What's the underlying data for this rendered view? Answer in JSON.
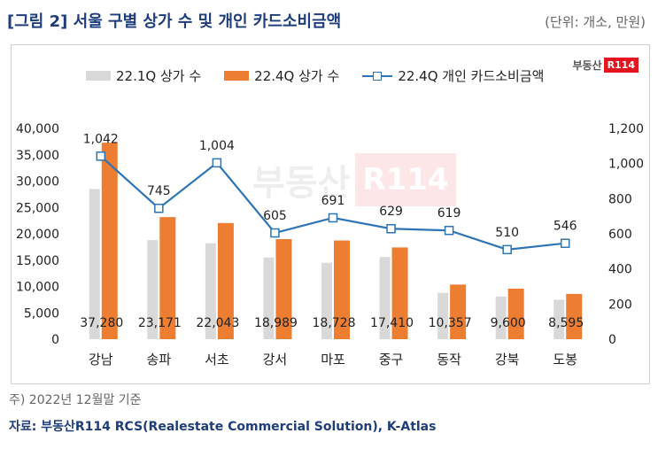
{
  "header": {
    "title": "[그림 2] 서울 구별 상가 수 및 개인 카드소비금액",
    "unit": "(단위: 개소, 만원)"
  },
  "legend": {
    "series_a": "22.1Q 상가 수",
    "series_b": "22.4Q 상가 수",
    "series_c": "22.4Q 개인 카드소비금액"
  },
  "logo": {
    "text": "부동산",
    "box": "R114"
  },
  "footer": {
    "note": "주) 2022년 12월말 기준",
    "source_label": "자료: ",
    "source_name": "부동산R114 RCS(Realestate Commercial Solution), K-Atlas"
  },
  "colors": {
    "series_a": "#d9d9d9",
    "series_b": "#ed7d31",
    "series_c": "#2e75b6",
    "title": "#1f3d7a"
  },
  "chart_data": {
    "type": "bar",
    "categories": [
      "강남",
      "송파",
      "서초",
      "강서",
      "마포",
      "중구",
      "동작",
      "강북",
      "도봉"
    ],
    "series": [
      {
        "name": "22.1Q 상가 수",
        "type": "bar",
        "axis": "left",
        "values": [
          28500,
          18800,
          18200,
          15500,
          14500,
          15600,
          8800,
          8100,
          7500
        ]
      },
      {
        "name": "22.4Q 상가 수",
        "type": "bar",
        "axis": "left",
        "values": [
          37280,
          23171,
          22043,
          18989,
          18728,
          17410,
          10357,
          9600,
          8595
        ],
        "labels": [
          "37,280",
          "23,171",
          "22,043",
          "18,989",
          "18,728",
          "17,410",
          "10,357",
          "9,600",
          "8,595"
        ]
      },
      {
        "name": "22.4Q 개인 카드소비금액",
        "type": "line",
        "axis": "right",
        "values": [
          1042,
          745,
          1004,
          605,
          691,
          629,
          619,
          510,
          546
        ],
        "labels": [
          "1,042",
          "745",
          "1,004",
          "605",
          "691",
          "629",
          "619",
          "510",
          "546"
        ]
      }
    ],
    "y_left": {
      "min": 0,
      "max": 40000,
      "ticks": [
        "0",
        "5,000",
        "10,000",
        "15,000",
        "20,000",
        "25,000",
        "30,000",
        "35,000",
        "40,000"
      ],
      "tick_values": [
        0,
        5000,
        10000,
        15000,
        20000,
        25000,
        30000,
        35000,
        40000
      ]
    },
    "y_right": {
      "min": 0,
      "max": 1200,
      "ticks": [
        "0",
        "200",
        "400",
        "600",
        "800",
        "1,000",
        "1,200"
      ],
      "tick_values": [
        0,
        200,
        400,
        600,
        800,
        1000,
        1200
      ]
    },
    "grid": false,
    "legend_position": "top"
  }
}
